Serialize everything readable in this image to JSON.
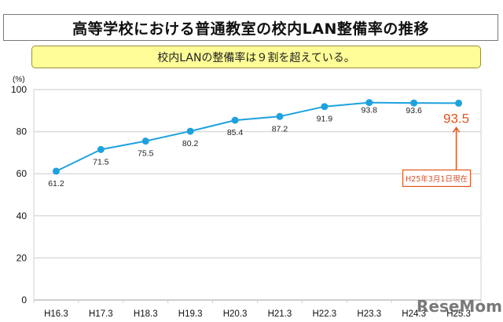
{
  "title": "高等学校における普通教室の校内LAN整備率の推移",
  "subtitle": "校内LANの整備率は９割を超えている。",
  "watermark": "ReseMom",
  "colors": {
    "line": "#1ea2de",
    "highlight": "#e0561c",
    "subtitle_bg": "#fefd97",
    "grid": "#dcdcdc"
  },
  "chart_data": {
    "type": "line",
    "title": "高等学校における普通教室の校内LAN整備率の推移",
    "subtitle": "校内LANの整備率は９割を超えている。",
    "xlabel": "",
    "ylabel": "(%)",
    "categories": [
      "H16.3",
      "H17.3",
      "H18.3",
      "H19.3",
      "H20.3",
      "H21.3",
      "H22.3",
      "H23.3",
      "H24.3",
      "H25.3"
    ],
    "series": [
      {
        "name": "校内LAN整備率",
        "values": [
          61.2,
          71.5,
          75.5,
          80.2,
          85.4,
          87.2,
          91.9,
          93.8,
          93.6,
          93.5
        ]
      }
    ],
    "data_labels": [
      "61.2",
      "71.5",
      "75.5",
      "80.2",
      "85.4",
      "87.2",
      "91.9",
      "93.8",
      "93.6",
      "93.5"
    ],
    "ylim": [
      0,
      100
    ],
    "yticks": [
      0,
      20,
      40,
      60,
      80,
      100
    ],
    "ytick_labels": [
      "0",
      "20",
      "40",
      "60",
      "80",
      "100"
    ],
    "grid": true,
    "legend": "none",
    "annotation": {
      "category": "H25.3",
      "value_label": "93.5",
      "note": "H25年3月1日現在"
    }
  }
}
